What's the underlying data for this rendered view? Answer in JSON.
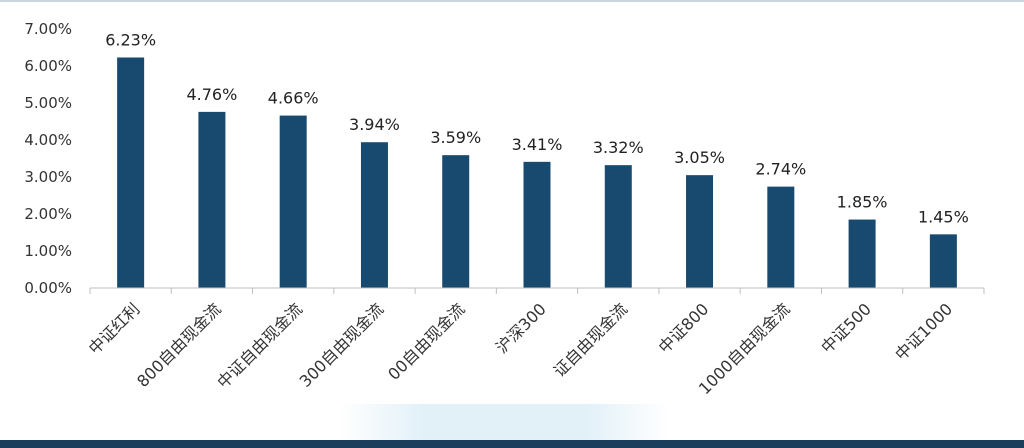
{
  "chart_data": {
    "type": "bar",
    "categories": [
      "中证红利",
      "800自由现金流",
      "中证自由现金流",
      "300自由现金流",
      "00自由现金流",
      "沪深300",
      "证自由现金流",
      "中证800",
      "1000自由现金流",
      "中证500",
      "中证1000"
    ],
    "values": [
      6.23,
      4.76,
      4.66,
      3.94,
      3.59,
      3.41,
      3.32,
      3.05,
      2.74,
      1.85,
      1.45
    ],
    "value_labels": [
      "6.23%",
      "4.76%",
      "4.66%",
      "3.94%",
      "3.59%",
      "3.41%",
      "3.32%",
      "3.05%",
      "2.74%",
      "1.85%",
      "1.45%"
    ],
    "y_ticks": [
      "0.00%",
      "1.00%",
      "2.00%",
      "3.00%",
      "4.00%",
      "5.00%",
      "6.00%",
      "7.00%"
    ],
    "ylim": [
      0,
      7
    ],
    "grid": false,
    "bar_color": "#174a6e"
  }
}
